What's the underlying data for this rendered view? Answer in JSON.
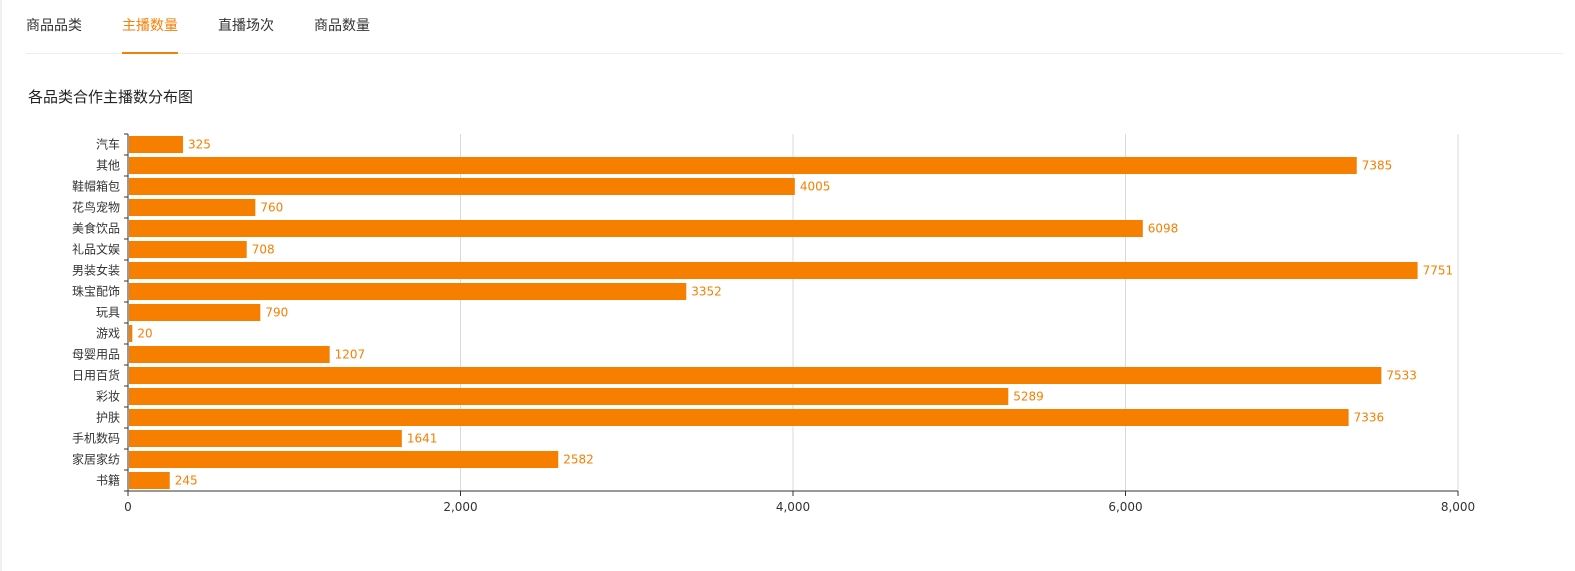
{
  "tabs": [
    {
      "label": "商品品类",
      "active": false
    },
    {
      "label": "主播数量",
      "active": true
    },
    {
      "label": "直播场次",
      "active": false
    },
    {
      "label": "商品数量",
      "active": false
    }
  ],
  "colors": {
    "accent": "#f47f06",
    "bar": "#f77f00",
    "grid": "#d9d9d9",
    "axis": "#333333"
  },
  "chart_data": {
    "type": "bar",
    "orientation": "horizontal",
    "title": "各品类合作主播数分布图",
    "categories": [
      "汽车",
      "其他",
      "鞋帽箱包",
      "花鸟宠物",
      "美食饮品",
      "礼品文娱",
      "男装女装",
      "珠宝配饰",
      "玩具",
      "游戏",
      "母婴用品",
      "日用百货",
      "彩妆",
      "护肤",
      "手机数码",
      "家居家纺",
      "书籍"
    ],
    "values": [
      325,
      7385,
      4005,
      760,
      6098,
      708,
      7751,
      3352,
      790,
      20,
      1207,
      7533,
      5289,
      7336,
      1641,
      2582,
      245
    ],
    "xlim": [
      0,
      8000
    ],
    "xticks": [
      0,
      2000,
      4000,
      6000,
      8000
    ],
    "xtick_labels": [
      "0",
      "2,000",
      "4,000",
      "6,000",
      "8,000"
    ],
    "xlabel": "",
    "ylabel": "",
    "grid": true,
    "data_labels": true
  }
}
